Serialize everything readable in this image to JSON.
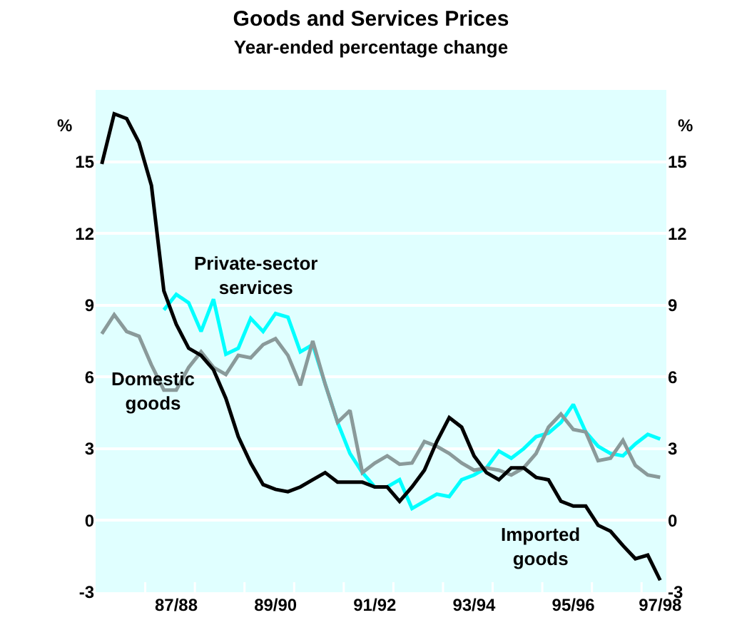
{
  "chart_data": {
    "type": "line",
    "title": "Goods and Services Prices",
    "subtitle": "Year-ended percentage change",
    "ylabel": "%",
    "y2label": "%",
    "categories": [
      null,
      null,
      null,
      null,
      null,
      null,
      "87/88",
      null,
      null,
      null,
      null,
      null,
      null,
      null,
      "89/90",
      null,
      null,
      null,
      null,
      null,
      null,
      null,
      "91/92",
      null,
      null,
      null,
      null,
      null,
      null,
      null,
      "93/94",
      null,
      null,
      null,
      null,
      null,
      null,
      null,
      "95/96",
      null,
      null,
      null,
      null,
      null,
      null,
      "97/98"
    ],
    "series": [
      {
        "name": "Private-sector services",
        "color": "#00ffff",
        "values": [
          null,
          null,
          null,
          null,
          null,
          8.8,
          9.45,
          9.1,
          7.9,
          9.25,
          6.95,
          7.2,
          8.45,
          7.9,
          8.65,
          8.5,
          7.05,
          7.35,
          5.7,
          4.1,
          2.8,
          2.0,
          1.4,
          1.4,
          1.7,
          0.5,
          0.8,
          1.1,
          1.0,
          1.7,
          1.9,
          2.2,
          2.9,
          2.6,
          3.0,
          3.5,
          3.65,
          4.1,
          4.85,
          3.7,
          3.1,
          2.8,
          2.7,
          3.2,
          3.6,
          3.4
        ]
      },
      {
        "name": "Domestic goods",
        "color": "#8a9a9a",
        "values": [
          7.8,
          8.6,
          7.9,
          7.7,
          6.5,
          5.45,
          5.45,
          6.4,
          7.05,
          6.4,
          6.1,
          6.9,
          6.8,
          7.35,
          7.6,
          6.9,
          5.65,
          7.5,
          5.7,
          4.1,
          4.6,
          2.0,
          2.4,
          2.7,
          2.35,
          2.4,
          3.3,
          3.1,
          2.8,
          2.4,
          2.1,
          2.2,
          2.1,
          1.9,
          2.2,
          2.8,
          3.9,
          4.45,
          3.8,
          3.7,
          2.5,
          2.6,
          3.35,
          2.3,
          1.9,
          1.8
        ]
      },
      {
        "name": "Imported goods",
        "color": "#000000",
        "values": [
          14.9,
          17.0,
          16.8,
          15.8,
          14.0,
          9.6,
          8.2,
          7.2,
          6.9,
          6.3,
          5.1,
          3.5,
          2.4,
          1.5,
          1.3,
          1.2,
          1.4,
          1.7,
          2.0,
          1.6,
          1.6,
          1.6,
          1.4,
          1.4,
          0.8,
          1.4,
          2.1,
          3.3,
          4.3,
          3.9,
          2.7,
          2.0,
          1.7,
          2.2,
          2.2,
          1.8,
          1.7,
          0.8,
          0.6,
          0.6,
          -0.2,
          -0.45,
          -1.05,
          -1.6,
          -1.45,
          -2.5
        ]
      }
    ],
    "ylim": [
      -3,
      18
    ],
    "yticks": [
      -3,
      0,
      3,
      6,
      9,
      12,
      15
    ],
    "y2lim": [
      -3,
      18
    ],
    "y2ticks": [
      -3,
      0,
      3,
      6,
      9,
      12,
      15
    ],
    "grid": "y",
    "legend": false,
    "marker": "none",
    "line_style": "solid"
  }
}
